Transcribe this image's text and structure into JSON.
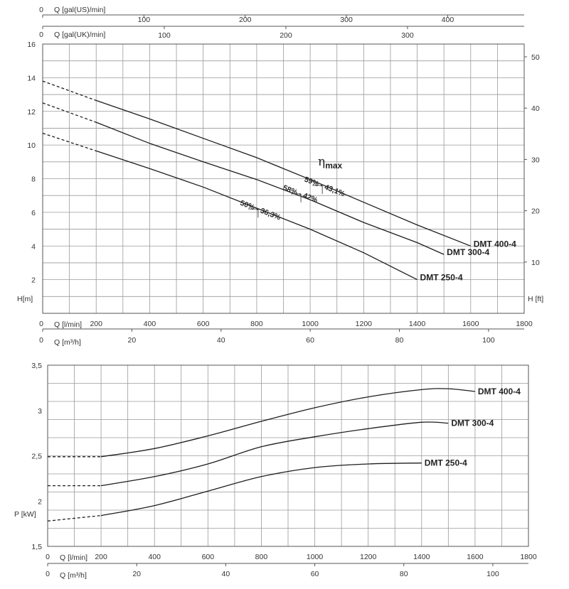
{
  "chart_data": [
    {
      "type": "line",
      "axes": {
        "x_primary": {
          "label": "Q [l/min]",
          "ticks": [
            "0",
            "200",
            "400",
            "600",
            "800",
            "1000",
            "1200",
            "1400",
            "1600",
            "1800"
          ],
          "range": [
            0,
            1800
          ]
        },
        "x_m3h": {
          "label": "Q [m³/h]",
          "ticks": [
            "0",
            "20",
            "40",
            "60",
            "80",
            "100"
          ]
        },
        "x_us": {
          "label": "Q [gal(US)/min]",
          "ticks": [
            "0",
            "100",
            "200",
            "300",
            "400"
          ]
        },
        "x_uk": {
          "label": "Q [gal(UK)/min]",
          "ticks": [
            "0",
            "100",
            "200",
            "300"
          ]
        },
        "y_left": {
          "label": "H[m]",
          "ticks": [
            "0",
            "2",
            "4",
            "6",
            "8",
            "10",
            "12",
            "14",
            "16"
          ],
          "range": [
            0,
            16
          ]
        },
        "y_right": {
          "label": "H [ft]",
          "ticks": [
            "10",
            "20",
            "30",
            "40",
            "50"
          ]
        }
      },
      "grid": true,
      "series": [
        {
          "name": "DMT 400-4",
          "x": [
            0,
            200,
            400,
            600,
            800,
            1000,
            1200,
            1400,
            1600
          ],
          "y": [
            13.8,
            12.65,
            11.55,
            10.4,
            9.25,
            7.95,
            6.6,
            5.25,
            4.0
          ],
          "dashed_until": 200
        },
        {
          "name": "DMT 300-4",
          "x": [
            0,
            200,
            400,
            600,
            800,
            1000,
            1200,
            1400,
            1500
          ],
          "y": [
            12.5,
            11.35,
            10.1,
            9.0,
            7.95,
            6.75,
            5.4,
            4.2,
            3.5
          ],
          "dashed_until": 200
        },
        {
          "name": "DMT 250-4",
          "x": [
            0,
            200,
            400,
            600,
            800,
            1000,
            1200,
            1400
          ],
          "y": [
            10.7,
            9.65,
            8.6,
            7.5,
            6.25,
            5.0,
            3.6,
            2.0
          ],
          "dashed_until": 200
        }
      ],
      "efficiency": {
        "title": "η",
        "subscript": "max",
        "points": [
          {
            "label": "59% - 43,1%",
            "x": 1040,
            "y": 7.6
          },
          {
            "label": "58% - 42%",
            "x": 960,
            "y": 7.1
          },
          {
            "label": "50% - 36,3%",
            "x": 800,
            "y": 6.2
          }
        ]
      }
    },
    {
      "type": "line",
      "axes": {
        "x_primary": {
          "label": "Q [l/min]",
          "ticks": [
            "0",
            "200",
            "400",
            "600",
            "800",
            "1000",
            "1200",
            "1400",
            "1600",
            "1800"
          ],
          "range": [
            0,
            1800
          ]
        },
        "x_m3h": {
          "label": "Q [m³/h]",
          "ticks": [
            "0",
            "20",
            "40",
            "60",
            "80",
            "100"
          ]
        },
        "y_left": {
          "label": "P [kW]",
          "ticks": [
            "1,5",
            "2",
            "2,5",
            "3",
            "3,5"
          ],
          "range": [
            1.5,
            3.5
          ]
        }
      },
      "grid": true,
      "series": [
        {
          "name": "DMT 400-4",
          "x": [
            0,
            200,
            400,
            600,
            800,
            1000,
            1200,
            1400,
            1500,
            1600
          ],
          "y": [
            2.49,
            2.49,
            2.58,
            2.72,
            2.88,
            3.03,
            3.15,
            3.23,
            3.24,
            3.21
          ],
          "dashed_until": 200
        },
        {
          "name": "DMT 300-4",
          "x": [
            0,
            200,
            400,
            600,
            800,
            1000,
            1200,
            1400,
            1500
          ],
          "y": [
            2.17,
            2.17,
            2.27,
            2.41,
            2.6,
            2.71,
            2.8,
            2.87,
            2.86
          ],
          "dashed_until": 200
        },
        {
          "name": "DMT 250-4",
          "x": [
            0,
            200,
            400,
            600,
            800,
            1000,
            1200,
            1400
          ],
          "y": [
            1.78,
            1.84,
            1.95,
            2.11,
            2.27,
            2.37,
            2.41,
            2.42
          ],
          "dashed_until": 200
        }
      ]
    }
  ]
}
